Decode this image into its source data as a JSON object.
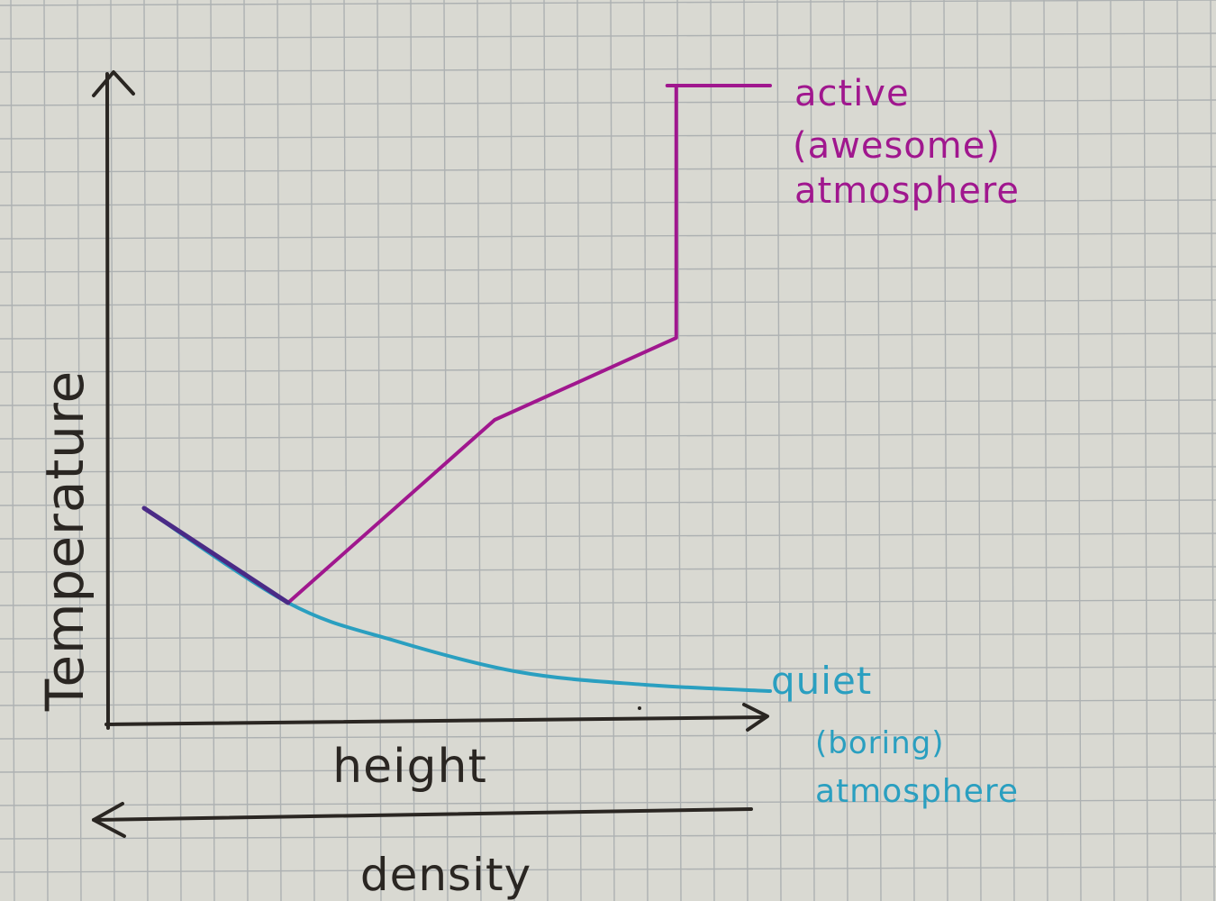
{
  "chart_data": {
    "type": "line",
    "xlabel": "height",
    "ylabel": "Temperature",
    "secondary_axis_label": "density",
    "series": [
      {
        "name": "quiet (boring) atmosphere",
        "label_lines": [
          "quiet",
          "(boring)",
          "atmosphere"
        ],
        "color": "#2a9fc0",
        "x": [
          0.0,
          0.23,
          0.4,
          0.6,
          0.8,
          1.0
        ],
        "y": [
          0.33,
          0.18,
          0.12,
          0.07,
          0.05,
          0.04
        ]
      },
      {
        "name": "active (awesome) atmosphere",
        "label_lines": [
          "active",
          "(awesome)",
          "atmosphere"
        ],
        "color": "#a0178e",
        "x": [
          0.0,
          0.23,
          0.56,
          0.85,
          0.85,
          1.0
        ],
        "y": [
          0.33,
          0.18,
          0.47,
          0.6,
          1.0,
          1.0
        ]
      }
    ],
    "overlap_color": "#4a2a86",
    "xlim": [
      0,
      1
    ],
    "ylim": [
      0,
      1
    ],
    "grid": true,
    "colors": {
      "ink": "#2a2622",
      "paper": "#d9d9d2",
      "grid": "#9fa4a8"
    }
  }
}
